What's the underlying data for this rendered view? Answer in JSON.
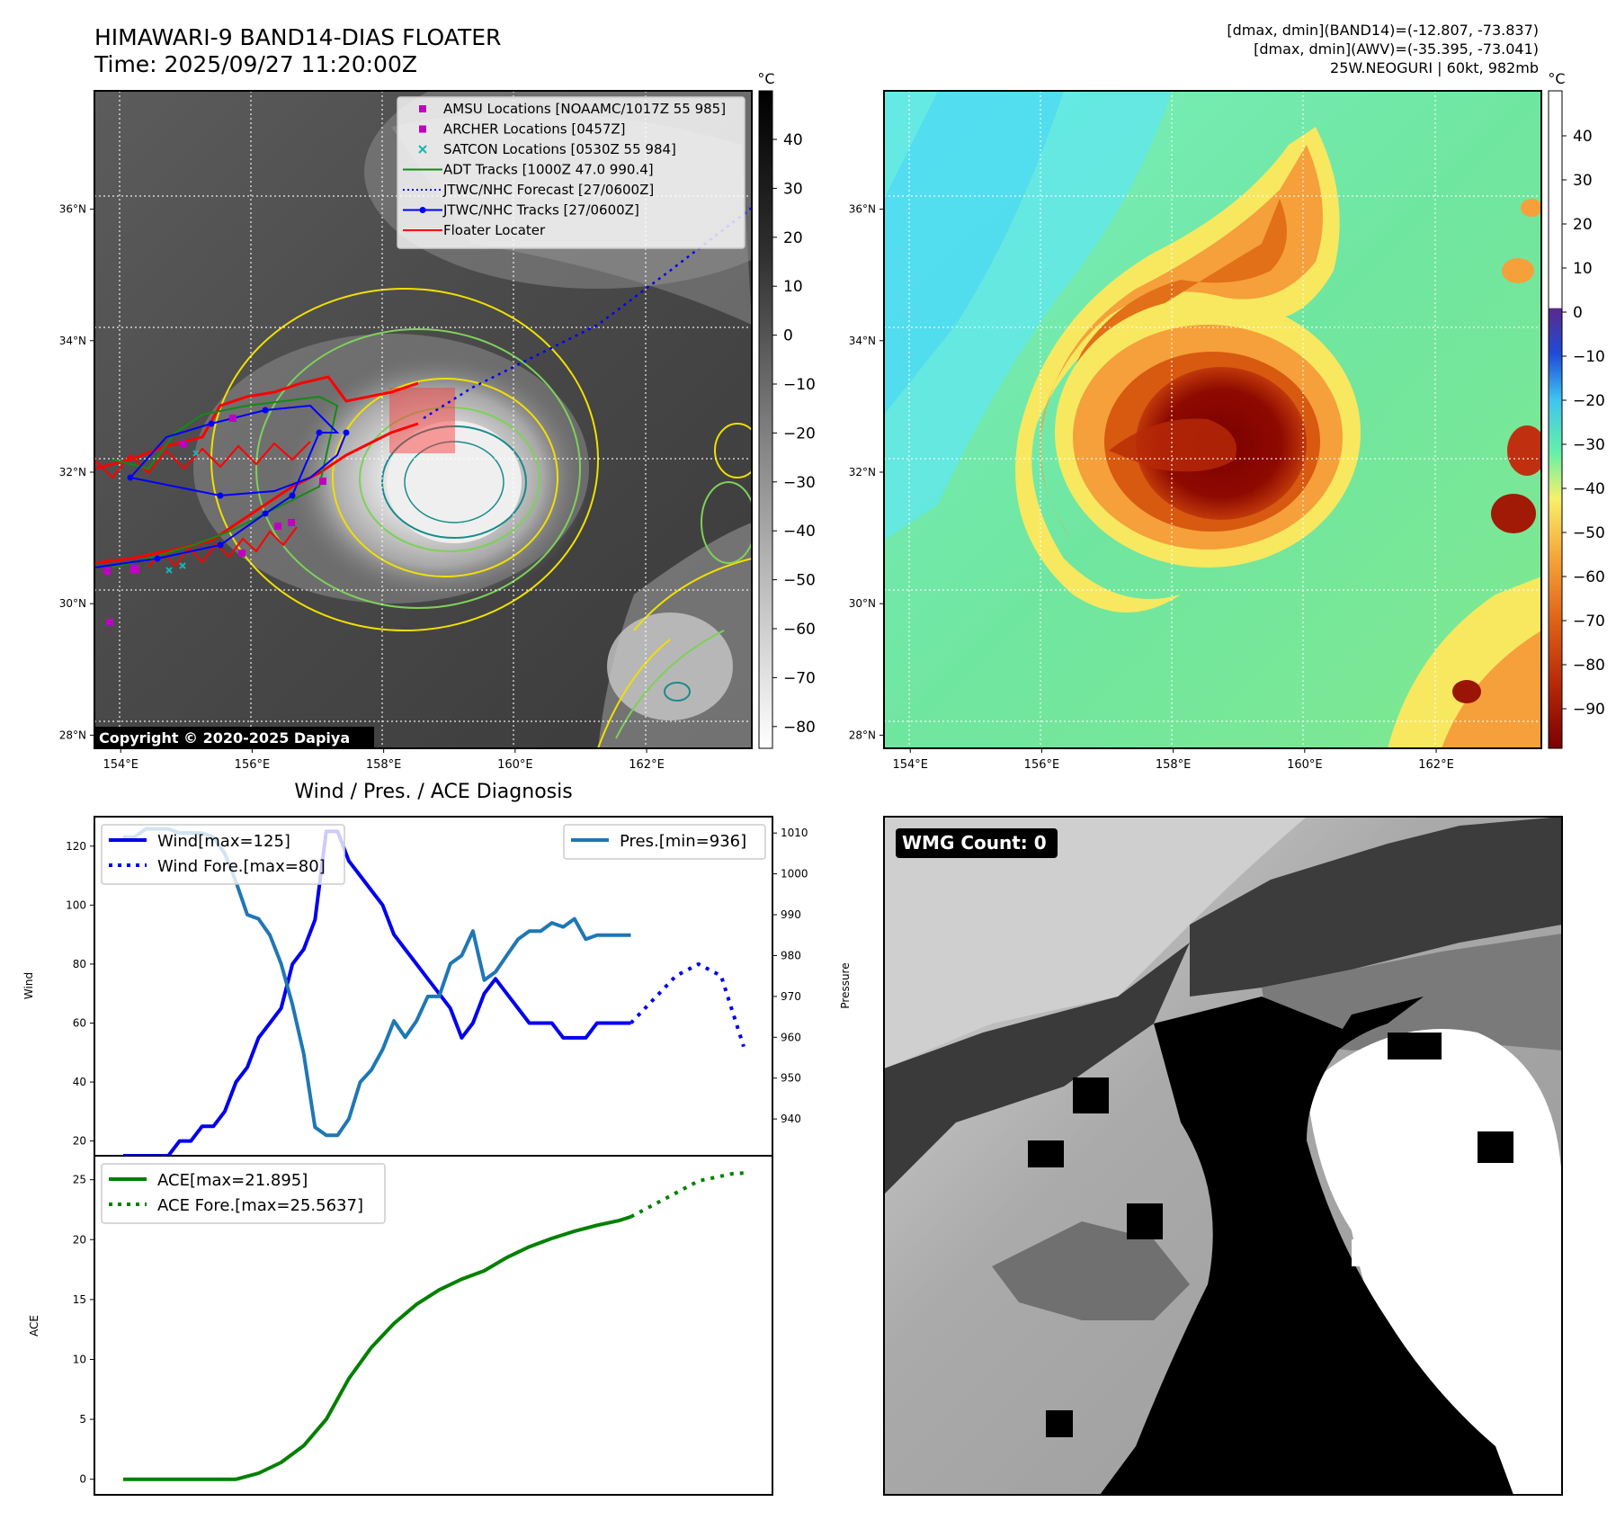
{
  "header": {
    "title_line1": "HIMAWARI-9 BAND14-DIAS FLOATER",
    "title_line2": "Time: 2025/09/27 11:20:00Z",
    "info_line1": "[dmax, dmin](BAND14)=(-12.807, -73.837)",
    "info_line2": "[dmax, dmin](AWV)=(-35.395, -73.041)",
    "info_line3": "25W.NEOGURI | 60kt, 982mb"
  },
  "copyright": "Copyright © 2020-2025 Dapiya",
  "map": {
    "lon_labels": [
      "154°E",
      "156°E",
      "158°E",
      "160°E",
      "162°E"
    ],
    "lon_values": [
      154,
      156,
      158,
      160,
      162
    ],
    "lat_labels": [
      "28°N",
      "30°N",
      "32°N",
      "34°N",
      "36°N"
    ],
    "lat_values": [
      28,
      30,
      32,
      34,
      36
    ],
    "lon_range": [
      153.6,
      163.6
    ],
    "lat_range": [
      27.8,
      37.8
    ]
  },
  "legend_map": [
    {
      "label": "AMSU Locations [NOAAMC/1017Z 55 985]",
      "color": "#c000c0",
      "marker": "square"
    },
    {
      "label": "ARCHER Locations [0457Z]",
      "color": "#c000c0",
      "marker": "square"
    },
    {
      "label": "SATCON Locations [0530Z 55 984]",
      "color": "#17b5b5",
      "marker": "x"
    },
    {
      "label": "ADT Tracks [1000Z 47.0 990.4]",
      "color": "#138a13",
      "marker": "line"
    },
    {
      "label": "JTWC/NHC Forecast [27/0600Z]",
      "color": "#0000ff",
      "marker": "dotted"
    },
    {
      "label": "JTWC/NHC Tracks [27/0600Z]",
      "color": "#0000ff",
      "marker": "line-dot"
    },
    {
      "label": "Floater Locater",
      "color": "#ff0000",
      "marker": "line"
    }
  ],
  "colorbar_ir": {
    "unit": "°C",
    "ticks": [
      "40",
      "30",
      "20",
      "10",
      "0",
      "−10",
      "−20",
      "−30",
      "−40",
      "−50",
      "−60",
      "−70",
      "−80"
    ]
  },
  "colorbar_wv": {
    "unit": "°C",
    "ticks": [
      "40",
      "30",
      "20",
      "10",
      "0",
      "−10",
      "−20",
      "−30",
      "−40",
      "−50",
      "−60",
      "−70",
      "−80",
      "−90"
    ]
  },
  "diagnosis": {
    "title": "Wind / Pres. / ACE Diagnosis",
    "wind_ylabel": "Wind",
    "pres_ylabel": "Pressure",
    "ace_ylabel": "ACE",
    "wind_legend": [
      "Wind[max=125]",
      "Wind Fore.[max=80]"
    ],
    "pres_legend": [
      "Pres.[min=936]"
    ],
    "ace_legend": [
      "ACE[max=21.895]",
      "ACE Fore.[max=25.5637]"
    ],
    "wind_ticks": [
      "20",
      "40",
      "60",
      "80",
      "100",
      "120"
    ],
    "pres_ticks": [
      "940",
      "950",
      "960",
      "970",
      "980",
      "990",
      "1000",
      "1010"
    ],
    "ace_ticks": [
      "0",
      "5",
      "10",
      "15",
      "20",
      "25"
    ]
  },
  "wmg": {
    "label": "WMG Count: 0"
  },
  "colors": {
    "wind": "#0000ee",
    "pressure": "#1f77b4",
    "ace": "#008000",
    "floater": "#ff0000"
  },
  "chart_data": [
    {
      "type": "line",
      "name": "wind",
      "x_range": [
        0,
        55
      ],
      "ylim": [
        15,
        130
      ],
      "series": [
        {
          "name": "Wind[max=125]",
          "x": [
            0,
            1,
            2,
            3,
            4,
            5,
            6,
            7,
            8,
            9,
            10,
            11,
            12,
            13,
            14,
            15,
            16,
            17,
            18,
            19,
            20,
            21,
            22,
            23,
            24,
            25,
            26,
            27,
            28,
            29,
            30,
            31,
            32,
            33,
            34,
            35,
            36,
            37,
            38,
            39,
            40,
            41,
            42,
            43,
            44,
            45
          ],
          "values": [
            15,
            15,
            15,
            15,
            15,
            20,
            20,
            25,
            25,
            30,
            40,
            45,
            55,
            60,
            65,
            80,
            85,
            95,
            125,
            125,
            115,
            110,
            105,
            100,
            90,
            85,
            80,
            75,
            70,
            65,
            55,
            60,
            70,
            75,
            70,
            65,
            60,
            60,
            60,
            55,
            55,
            55,
            60,
            60,
            60,
            60
          ]
        },
        {
          "name": "Wind Fore.[max=80]",
          "x": [
            45,
            47,
            49,
            51,
            53,
            55
          ],
          "values": [
            60,
            68,
            76,
            80,
            76,
            52
          ]
        }
      ]
    },
    {
      "type": "line",
      "name": "pressure",
      "x_range": [
        0,
        55
      ],
      "ylim": [
        931,
        1014
      ],
      "series": [
        {
          "name": "Pres.[min=936]",
          "x": [
            0,
            1,
            2,
            3,
            4,
            5,
            6,
            7,
            8,
            9,
            10,
            11,
            12,
            13,
            14,
            15,
            16,
            17,
            18,
            19,
            20,
            21,
            22,
            23,
            24,
            25,
            26,
            27,
            28,
            29,
            30,
            31,
            32,
            33,
            34,
            35,
            36,
            37,
            38,
            39,
            40,
            41,
            42,
            43,
            44,
            45
          ],
          "values": [
            1009,
            1009,
            1011,
            1011,
            1011,
            1010,
            1010,
            1010,
            1009,
            1005,
            998,
            990,
            989,
            985,
            978,
            968,
            956,
            938,
            936,
            936,
            940,
            949,
            952,
            957,
            964,
            960,
            964,
            970,
            970,
            978,
            980,
            986,
            974,
            976,
            980,
            984,
            986,
            986,
            988,
            987,
            989,
            984,
            985,
            985,
            985,
            985
          ]
        }
      ]
    },
    {
      "type": "line",
      "name": "ace",
      "x_range": [
        0,
        55
      ],
      "ylim": [
        -1.3,
        27
      ],
      "series": [
        {
          "name": "ACE[max=21.895]",
          "x": [
            0,
            2,
            4,
            6,
            8,
            10,
            12,
            14,
            16,
            18,
            20,
            22,
            24,
            26,
            28,
            30,
            32,
            34,
            36,
            38,
            40,
            42,
            44,
            45
          ],
          "values": [
            0,
            0,
            0,
            0,
            0,
            0,
            0.5,
            1.4,
            2.8,
            5.0,
            8.4,
            11.0,
            13.0,
            14.6,
            15.8,
            16.7,
            17.4,
            18.5,
            19.4,
            20.1,
            20.7,
            21.2,
            21.6,
            21.9
          ]
        },
        {
          "name": "ACE Fore.[max=25.5637]",
          "x": [
            45,
            48,
            51,
            54,
            55
          ],
          "values": [
            21.9,
            23.4,
            24.9,
            25.5,
            25.56
          ]
        }
      ]
    }
  ]
}
